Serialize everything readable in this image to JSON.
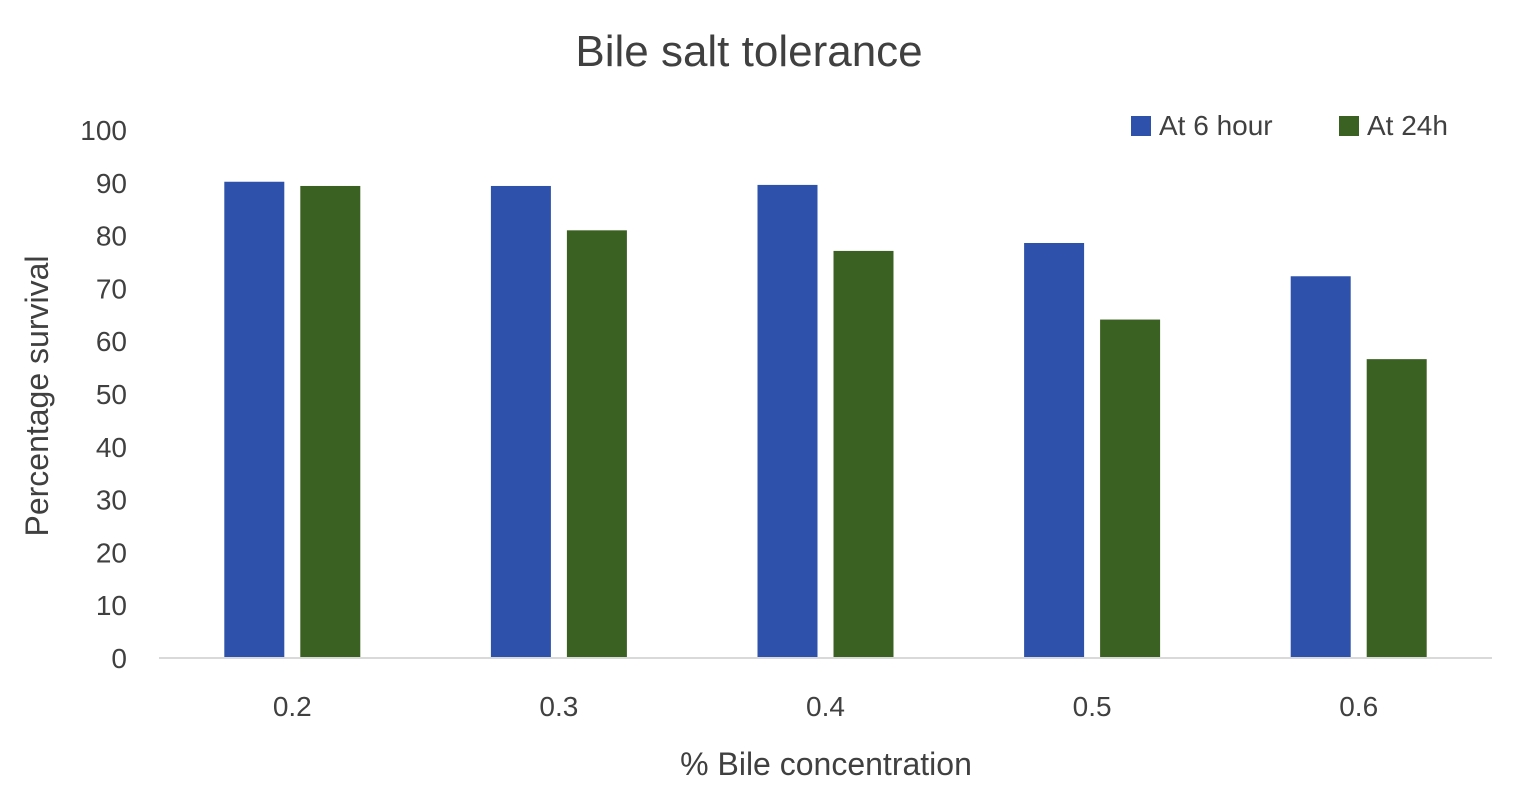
{
  "chart_data": {
    "type": "bar",
    "title": "Bile salt tolerance",
    "xlabel": "% Bile concentration",
    "ylabel": "Percentage survival",
    "categories": [
      "0.2",
      "0.3",
      "0.4",
      "0.5",
      "0.6"
    ],
    "series": [
      {
        "name": "At 6 hour",
        "color": "#2E52AC",
        "values": [
          90.2,
          89.4,
          89.6,
          78.6,
          72.3
        ]
      },
      {
        "name": "At 24h",
        "color": "#3B6122",
        "values": [
          89.4,
          81.0,
          77.1,
          64.1,
          56.6
        ]
      }
    ],
    "ylim": [
      0,
      100
    ],
    "yticks": [
      "0",
      "10",
      "20",
      "30",
      "40",
      "50",
      "60",
      "70",
      "80",
      "90",
      "100"
    ],
    "grid": false,
    "legend_position": "top-right",
    "axis_color": "#D9D9D9"
  }
}
